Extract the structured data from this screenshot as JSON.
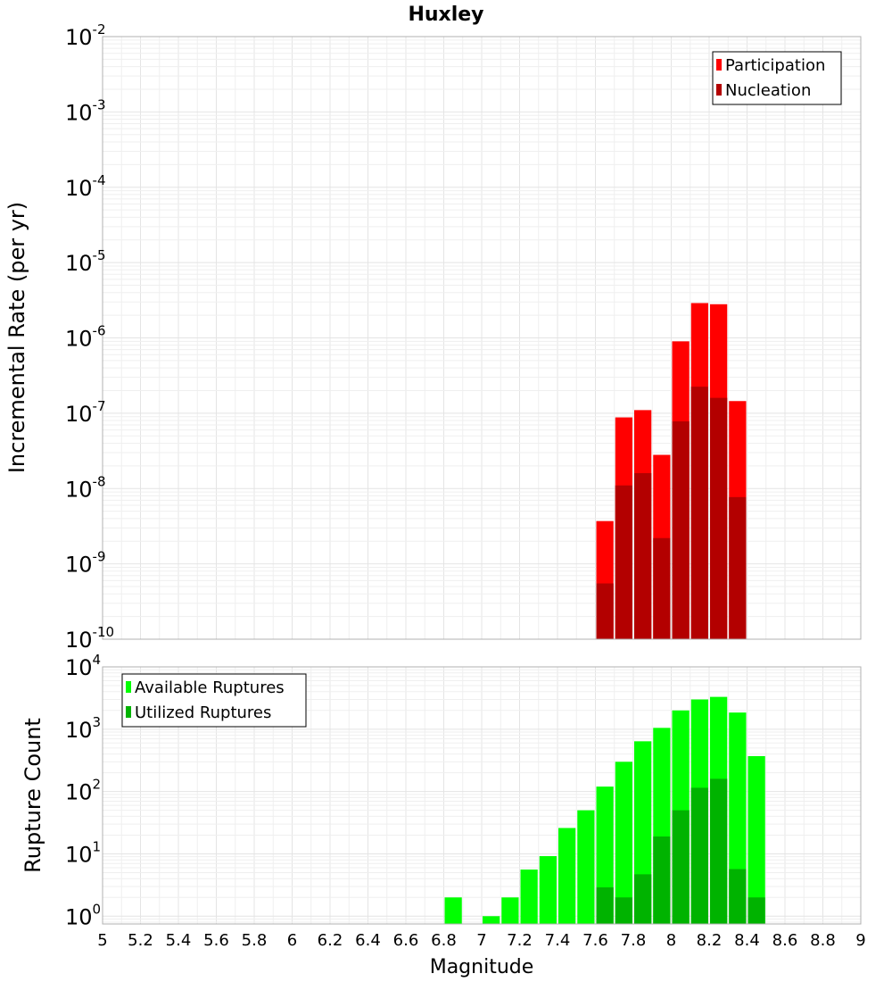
{
  "chart_data": [
    {
      "type": "bar",
      "title": "Huxley",
      "xlabel": "",
      "ylabel": "Incremental Rate (per yr)",
      "yscale": "log",
      "ylim": [
        1e-10,
        0.01
      ],
      "xlim": [
        5,
        9
      ],
      "bar_width": 0.1,
      "yticks": [
        {
          "base": "10",
          "exp": "-2"
        },
        {
          "base": "10",
          "exp": "-3"
        },
        {
          "base": "10",
          "exp": "-4"
        },
        {
          "base": "10",
          "exp": "-5"
        },
        {
          "base": "10",
          "exp": "-6"
        },
        {
          "base": "10",
          "exp": "-7"
        },
        {
          "base": "10",
          "exp": "-8"
        },
        {
          "base": "10",
          "exp": "-9"
        },
        {
          "base": "10",
          "exp": "-10"
        }
      ],
      "legend": {
        "position": "top-right"
      },
      "x": [
        7.65,
        7.75,
        7.85,
        7.95,
        8.05,
        8.15,
        8.25,
        8.35
      ],
      "series": [
        {
          "name": "Participation",
          "color": "#ff0000",
          "values": [
            3.7e-09,
            8.8e-08,
            1.1e-07,
            2.8e-08,
            9e-07,
            2.9e-06,
            2.8e-06,
            1.45e-07
          ]
        },
        {
          "name": "Nucleation",
          "color": "#b30000",
          "values": [
            5.5e-10,
            1.1e-08,
            1.6e-08,
            2.2e-09,
            7.8e-08,
            2.25e-07,
            1.6e-07,
            7.7e-09
          ]
        }
      ]
    },
    {
      "type": "bar",
      "title": "",
      "xlabel": "Magnitude",
      "ylabel": "Rupture Count",
      "yscale": "log",
      "ylim": [
        0.75,
        10000
      ],
      "xlim": [
        5,
        9
      ],
      "bar_width": 0.1,
      "xtick_labels": [
        "5",
        "5.2",
        "5.4",
        "5.6",
        "5.8",
        "6",
        "6.2",
        "6.4",
        "6.6",
        "6.8",
        "7",
        "7.2",
        "7.4",
        "7.6",
        "7.8",
        "8",
        "8.2",
        "8.4",
        "8.6",
        "8.8",
        "9"
      ],
      "yticks": [
        {
          "base": "10",
          "exp": "4"
        },
        {
          "base": "10",
          "exp": "3"
        },
        {
          "base": "10",
          "exp": "2"
        },
        {
          "base": "10",
          "exp": "1"
        },
        {
          "base": "10",
          "exp": "0"
        }
      ],
      "legend": {
        "position": "top-left"
      },
      "x": [
        6.85,
        6.95,
        7.05,
        7.15,
        7.25,
        7.35,
        7.45,
        7.55,
        7.65,
        7.75,
        7.85,
        7.95,
        8.05,
        8.15,
        8.25,
        8.35,
        8.45
      ],
      "series": [
        {
          "name": "Available Ruptures",
          "color": "#00ff00",
          "values": [
            2,
            null,
            1,
            2,
            5.6,
            9.2,
            26,
            50,
            120,
            300,
            640,
            1050,
            2000,
            3000,
            3300,
            1850,
            370
          ]
        },
        {
          "name": "Utilized Ruptures",
          "color": "#00b300",
          "values": [
            null,
            null,
            null,
            null,
            null,
            null,
            null,
            null,
            2.9,
            2,
            4.7,
            19,
            50,
            115,
            160,
            5.7,
            2
          ]
        }
      ]
    }
  ]
}
